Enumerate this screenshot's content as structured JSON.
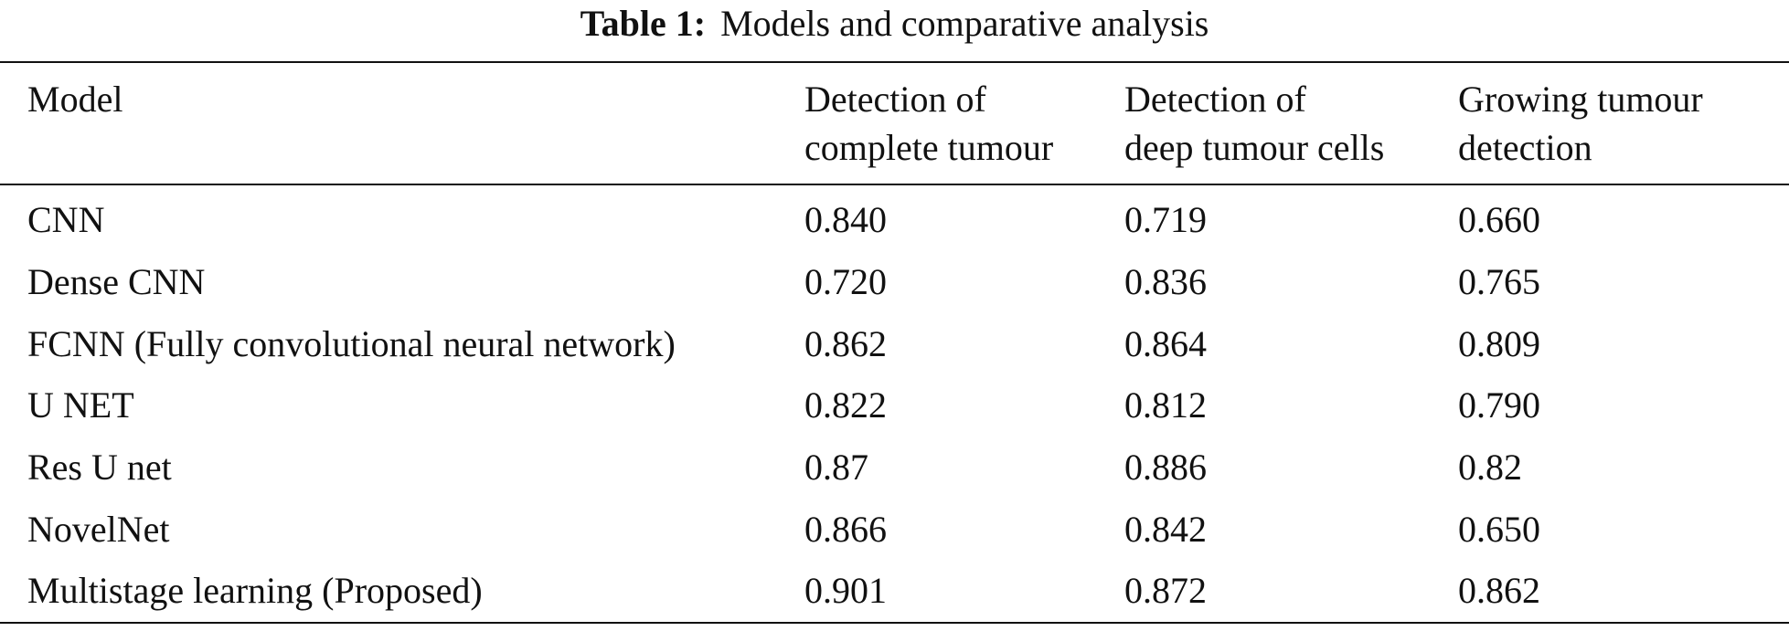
{
  "caption": {
    "label": "Table 1:",
    "title": "Models and comparative analysis"
  },
  "table": {
    "columns": [
      "Model",
      "Detection of complete tumour",
      "Detection of deep tumour cells",
      "Growing tumour detection"
    ],
    "columns_lines": [
      [
        "Model"
      ],
      [
        "Detection of",
        "complete tumour"
      ],
      [
        "Detection of",
        "deep tumour cells"
      ],
      [
        "Growing tumour",
        "detection"
      ]
    ],
    "rows": [
      [
        "CNN",
        "0.840",
        "0.719",
        "0.660"
      ],
      [
        "Dense CNN",
        "0.720",
        "0.836",
        "0.765"
      ],
      [
        "FCNN (Fully convolutional neural network)",
        "0.862",
        "0.864",
        "0.809"
      ],
      [
        "U NET",
        "0.822",
        "0.812",
        "0.790"
      ],
      [
        "Res U net",
        "0.87",
        "0.886",
        "0.82"
      ],
      [
        "NovelNet",
        "0.866",
        "0.842",
        "0.650"
      ],
      [
        "Multistage learning (Proposed)",
        "0.901",
        "0.872",
        "0.862"
      ]
    ]
  }
}
